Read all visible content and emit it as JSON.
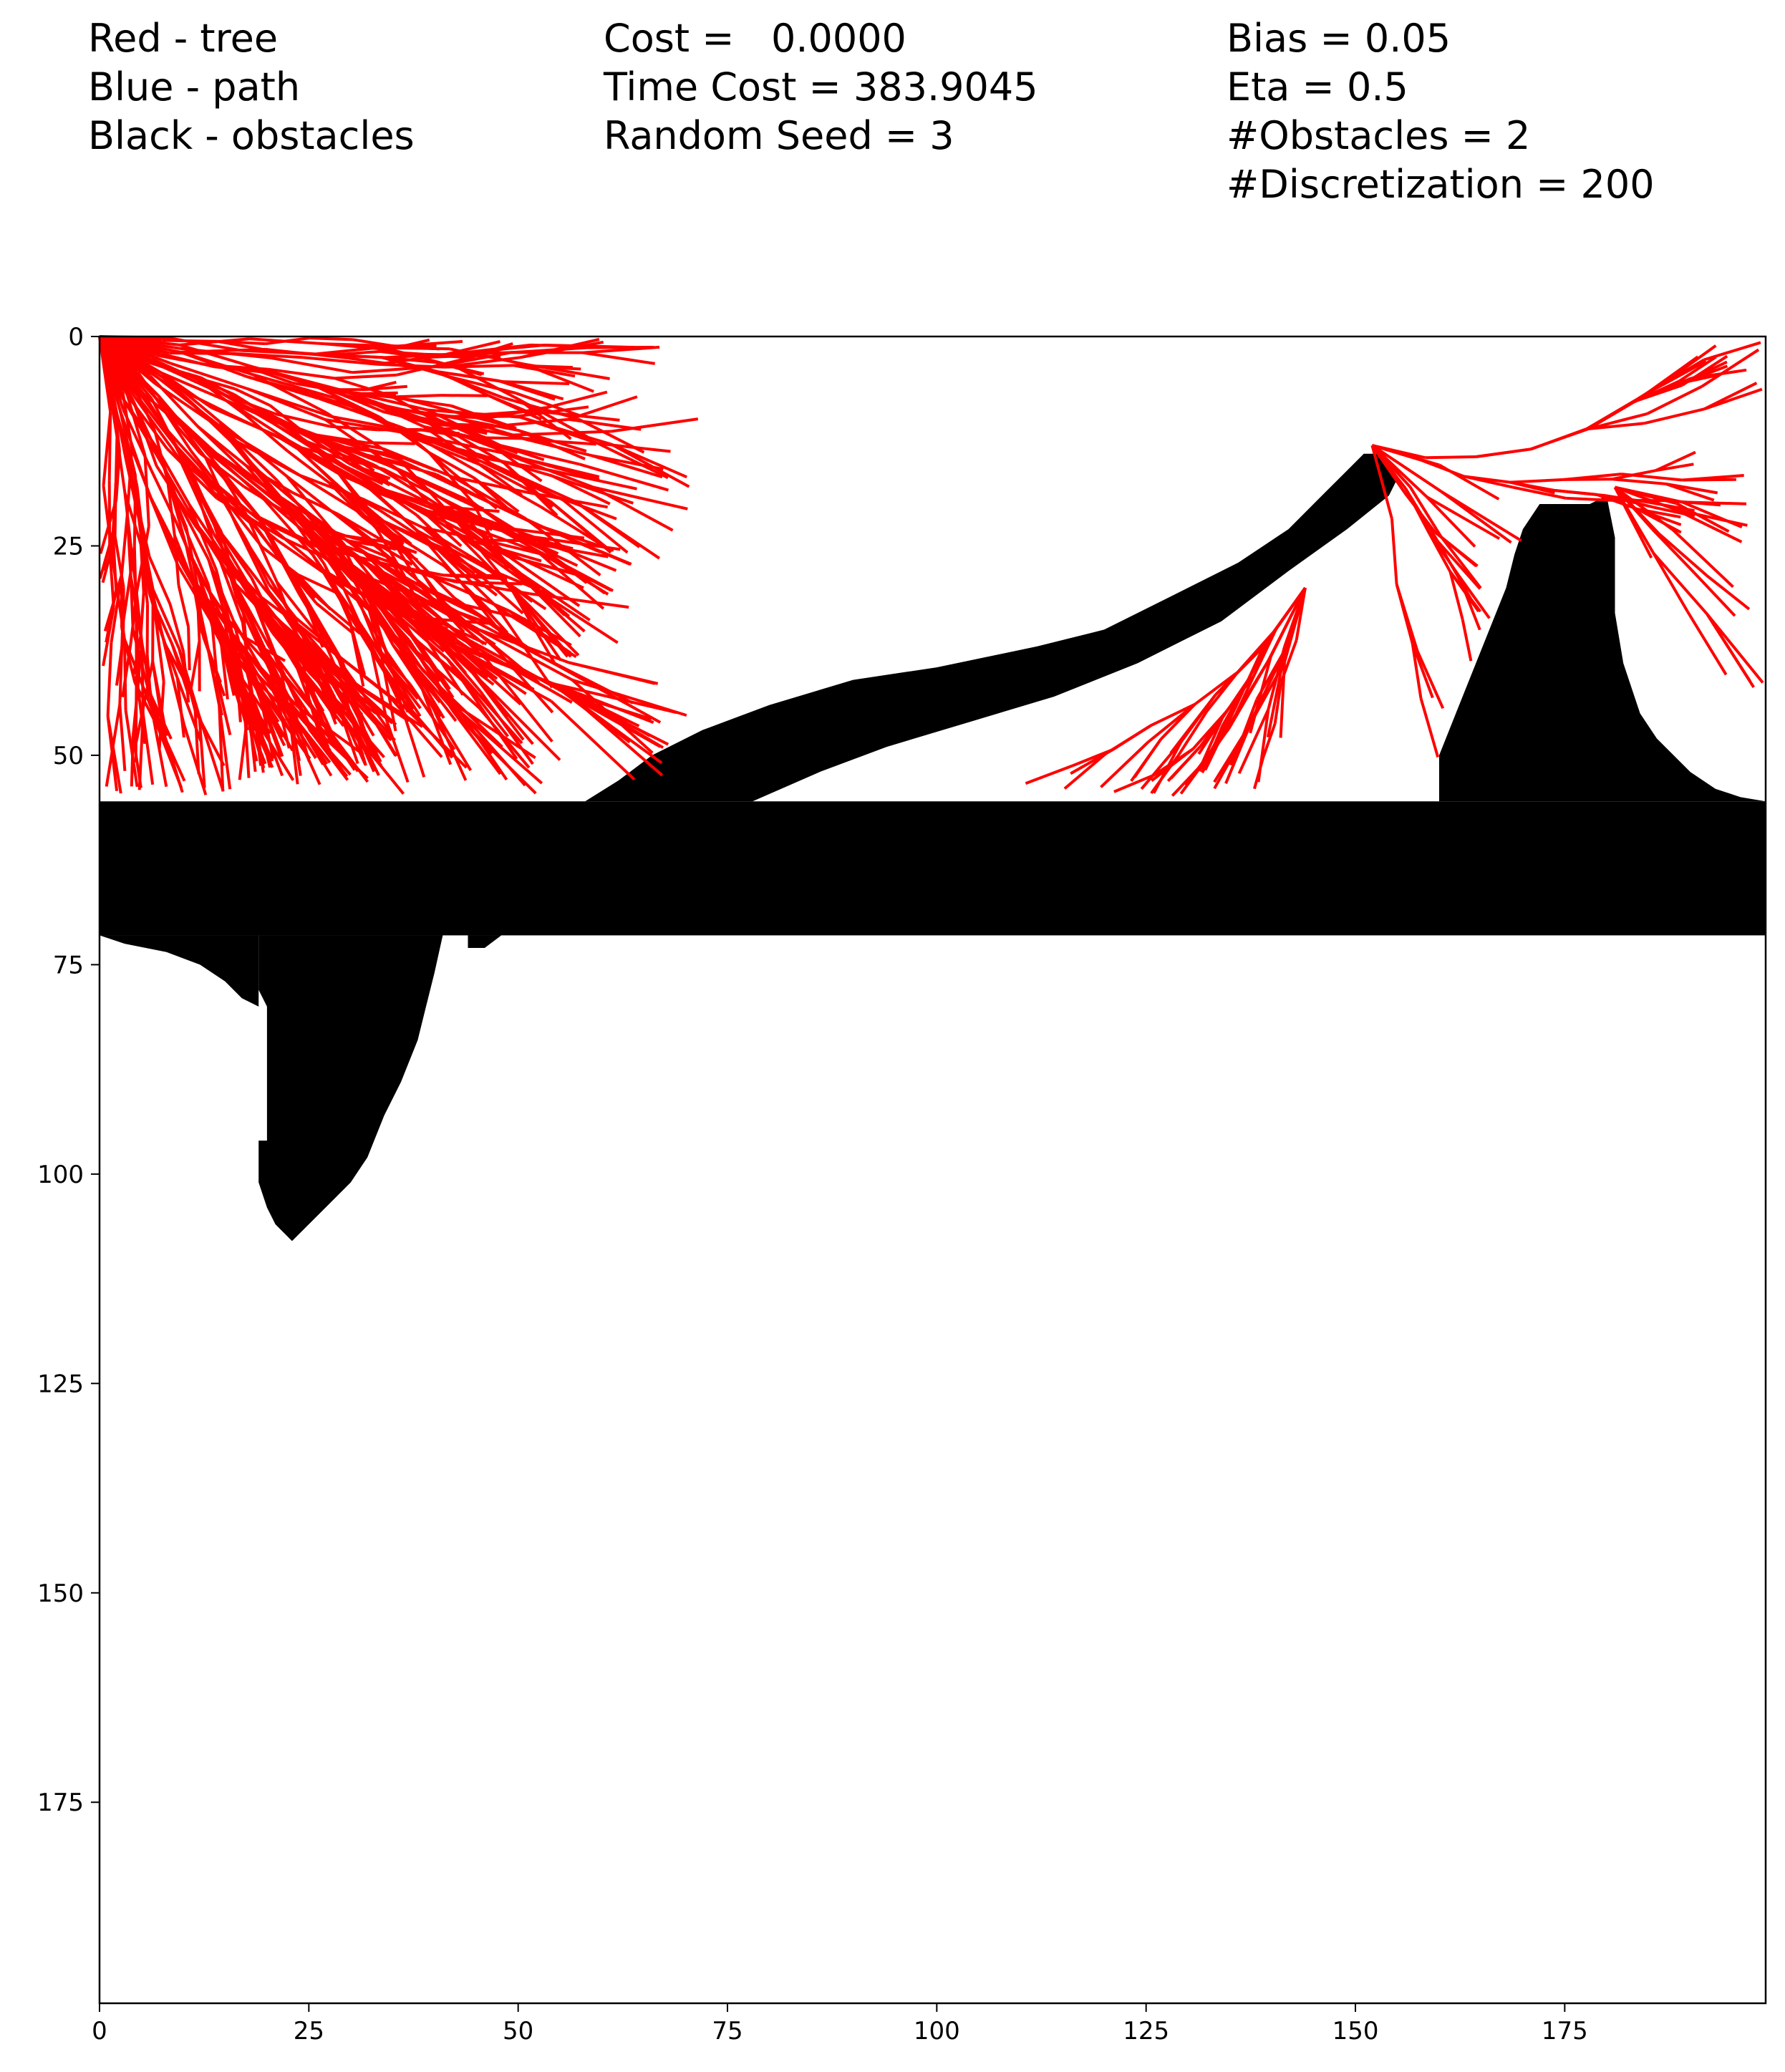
{
  "header": {
    "col1": [
      "Red - tree",
      "Blue - path",
      "Black - obstacles"
    ],
    "col2": [
      "Cost =   0.0000",
      "Time Cost = 383.9045",
      "Random Seed = 3"
    ],
    "col3": [
      "Bias = 0.05",
      "Eta = 0.5",
      "#Obstacles = 2",
      "#Discretization = 200"
    ]
  },
  "colors": {
    "tree": "#ff0000",
    "path": "#0000ff",
    "obstacles": "#000000"
  },
  "chart_data": {
    "type": "line",
    "grid": false,
    "xlim": [
      0,
      199
    ],
    "ylim": [
      199,
      0
    ],
    "y_inverted": true,
    "xticks": [
      0,
      25,
      50,
      75,
      100,
      125,
      150,
      175
    ],
    "yticks": [
      0,
      25,
      50,
      75,
      100,
      125,
      150,
      175
    ],
    "obstacles": {
      "band": {
        "x": [
          0,
          199
        ],
        "y": [
          55.5,
          71.5
        ]
      },
      "drop_obstacle": [
        [
          19,
          71.5
        ],
        [
          19,
          78
        ],
        [
          20,
          80
        ],
        [
          20,
          96
        ],
        [
          19,
          96
        ],
        [
          19,
          101
        ],
        [
          20,
          104
        ],
        [
          21,
          106
        ],
        [
          22,
          107
        ],
        [
          23,
          108
        ],
        [
          25,
          106
        ],
        [
          27,
          104
        ],
        [
          30,
          101
        ],
        [
          32,
          98
        ],
        [
          34,
          93
        ],
        [
          36,
          89
        ],
        [
          38,
          84
        ],
        [
          39,
          80
        ],
        [
          40,
          76
        ],
        [
          41,
          71.5
        ]
      ],
      "shelf_left": [
        [
          0,
          71.5
        ],
        [
          3,
          72.5
        ],
        [
          8,
          73.5
        ],
        [
          12,
          75
        ],
        [
          15,
          77
        ],
        [
          17,
          79
        ],
        [
          19,
          80
        ],
        [
          19,
          71.5
        ]
      ],
      "notch": [
        [
          44,
          71.5
        ],
        [
          44,
          73
        ],
        [
          46,
          73
        ],
        [
          48,
          71.5
        ]
      ],
      "ridge": [
        [
          58,
          55.5
        ],
        [
          62,
          53
        ],
        [
          66,
          50
        ],
        [
          72,
          47
        ],
        [
          80,
          44
        ],
        [
          90,
          41
        ],
        [
          100,
          39.5
        ],
        [
          112,
          37
        ],
        [
          120,
          35
        ],
        [
          128,
          31
        ],
        [
          136,
          27
        ],
        [
          142,
          23
        ],
        [
          146,
          19
        ],
        [
          149,
          16
        ],
        [
          151,
          14
        ],
        [
          153,
          14
        ],
        [
          155,
          17
        ],
        [
          154,
          19
        ],
        [
          149,
          23
        ],
        [
          142,
          28
        ],
        [
          134,
          34
        ],
        [
          124,
          39
        ],
        [
          114,
          43
        ],
        [
          104,
          46
        ],
        [
          94,
          49
        ],
        [
          86,
          52
        ],
        [
          78,
          55.5
        ]
      ],
      "peak": [
        [
          160,
          55.5
        ],
        [
          160,
          50
        ],
        [
          162,
          45
        ],
        [
          164,
          40
        ],
        [
          166,
          35
        ],
        [
          168,
          30
        ],
        [
          169,
          26
        ],
        [
          170,
          23
        ],
        [
          172,
          20
        ],
        [
          178,
          20
        ],
        [
          180,
          19
        ],
        [
          181,
          24
        ],
        [
          181,
          33
        ],
        [
          182,
          39
        ],
        [
          184,
          45
        ],
        [
          186,
          48
        ],
        [
          188,
          50
        ],
        [
          190,
          52
        ],
        [
          193,
          54
        ],
        [
          196,
          55
        ],
        [
          199,
          55.5
        ]
      ]
    },
    "tree_roots": [
      [
        0,
        0
      ],
      [
        152,
        13
      ],
      [
        181,
        18
      ],
      [
        144,
        30
      ]
    ],
    "path_points": []
  }
}
